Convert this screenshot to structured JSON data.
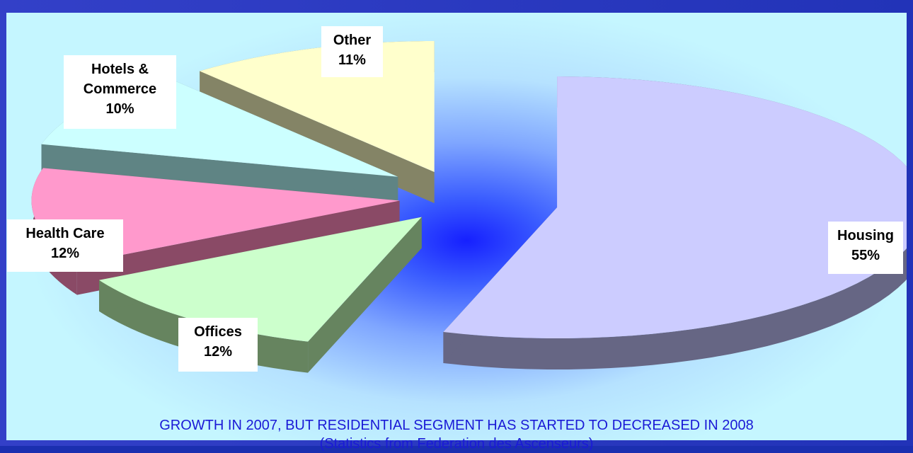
{
  "chart_data": {
    "type": "pie",
    "title": "",
    "slices": [
      {
        "label": "Housing",
        "value": 55,
        "pct_label": "55%",
        "color": "#ccccff",
        "side_color": "#666684"
      },
      {
        "label": "Offices",
        "value": 12,
        "pct_label": "12%",
        "color": "#ccffcc",
        "side_color": "#66845f"
      },
      {
        "label": "Health Care",
        "value": 12,
        "pct_label": "12%",
        "color": "#ff99cc",
        "side_color": "#8a4a66"
      },
      {
        "label": "Hotels & Commerce",
        "value": 10,
        "pct_label": "10%",
        "color": "#ccffff",
        "side_color": "#5f8484"
      },
      {
        "label": "Other",
        "value": 11,
        "pct_label": "11%",
        "color": "#ffffcc",
        "side_color": "#848466"
      }
    ]
  },
  "footnote": {
    "line1": "GROWTH IN 2007, BUT RESIDENTIAL SEGMENT HAS STARTED TO DECREASED IN 2008",
    "line2": "(Statistics from Federation des Ascenseurs)"
  },
  "labels": {
    "housing": {
      "name": "Housing",
      "pct": "55%"
    },
    "offices": {
      "name": "Offices",
      "pct": "12%"
    },
    "health_care": {
      "name": "Health Care",
      "pct": "12%"
    },
    "hotels": {
      "name1": "Hotels &",
      "name2": "Commerce",
      "pct": "10%"
    },
    "other": {
      "name": "Other",
      "pct": "11%"
    }
  }
}
